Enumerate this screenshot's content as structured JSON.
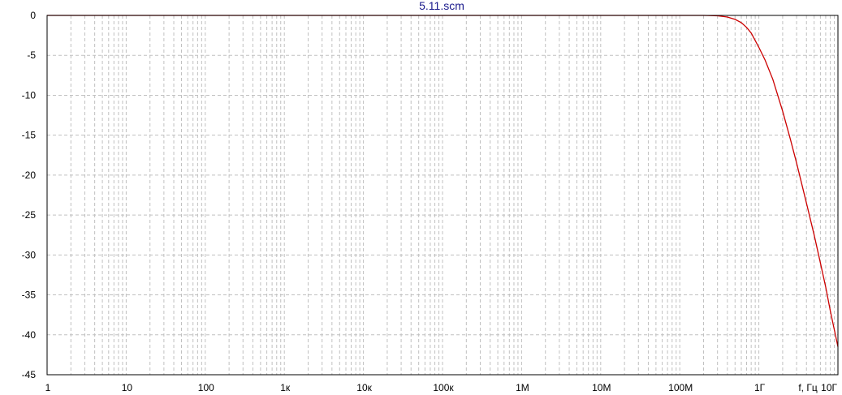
{
  "chart_data": {
    "type": "line",
    "title": "5.11.scm",
    "xlabel": "f, Гц",
    "ylabel": "",
    "x_scale": "log",
    "xlim": [
      1,
      10000000000
    ],
    "ylim": [
      -45,
      0
    ],
    "grid": true,
    "x_ticks": [
      {
        "value": 1,
        "label": "1"
      },
      {
        "value": 10,
        "label": "10"
      },
      {
        "value": 100,
        "label": "100"
      },
      {
        "value": 1000,
        "label": "1к"
      },
      {
        "value": 10000,
        "label": "10к"
      },
      {
        "value": 100000,
        "label": "100к"
      },
      {
        "value": 1000000,
        "label": "1М"
      },
      {
        "value": 10000000,
        "label": "10М"
      },
      {
        "value": 100000000,
        "label": "100М"
      },
      {
        "value": 1000000000,
        "label": "1Г"
      },
      {
        "value": 10000000000,
        "label": "10Г"
      }
    ],
    "y_ticks": [
      {
        "value": 0,
        "label": "0"
      },
      {
        "value": -5,
        "label": "-5"
      },
      {
        "value": -10,
        "label": "-10"
      },
      {
        "value": -15,
        "label": "-15"
      },
      {
        "value": -20,
        "label": "-20"
      },
      {
        "value": -25,
        "label": "-25"
      },
      {
        "value": -30,
        "label": "-30"
      },
      {
        "value": -35,
        "label": "-35"
      },
      {
        "value": -40,
        "label": "-40"
      },
      {
        "value": -45,
        "label": "-45"
      }
    ],
    "series": [
      {
        "color": "#cc0000",
        "x": [
          200000000,
          300000000,
          400000000,
          500000000,
          600000000,
          700000000,
          800000000,
          1000000000,
          1200000000,
          1500000000,
          2000000000,
          2500000000,
          3000000000,
          4000000000,
          5000000000,
          6000000000,
          7000000000,
          8000000000,
          10000000000
        ],
        "y": [
          0,
          -0.05,
          -0.2,
          -0.5,
          -0.9,
          -1.5,
          -2.2,
          -4,
          -5.6,
          -8,
          -12,
          -15.5,
          -18.5,
          -23.5,
          -27.5,
          -31,
          -34,
          -37,
          -41.5
        ]
      }
    ]
  },
  "colors": {
    "title": "#1a1a8c",
    "grid": "#c0c0c0",
    "axes": "#000000",
    "curve": "#cc0000"
  }
}
